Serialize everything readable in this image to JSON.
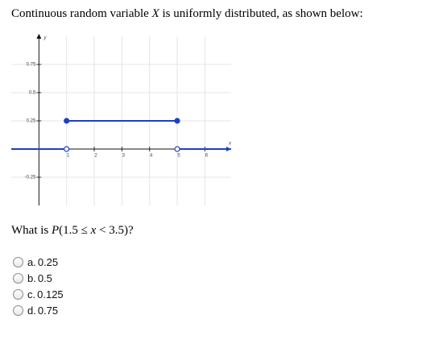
{
  "intro": [
    "Continuous random variable ",
    "X",
    " is uniformly distributed, as shown below:"
  ],
  "chart": {
    "type": "line",
    "xlabel": "x",
    "ylabel": "y",
    "xlim": [
      -1,
      6.95
    ],
    "ylim": [
      -0.5,
      1.0
    ],
    "xticks": [
      1,
      2,
      3,
      4,
      5,
      6
    ],
    "yticks": [
      -0.25,
      0.25,
      0.5,
      0.75
    ],
    "grid": true,
    "series": [
      {
        "color": "#1f3fc4",
        "x": [
          -1,
          1
        ],
        "values": [
          0,
          0
        ],
        "dots": [
          "none",
          "open"
        ]
      },
      {
        "color": "#1f3fc4",
        "x": [
          1,
          5
        ],
        "values": [
          0.25,
          0.25
        ],
        "dots": [
          "filled",
          "filled"
        ]
      },
      {
        "color": "#1f3fc4",
        "x": [
          5,
          6.95
        ],
        "values": [
          0,
          0
        ],
        "dots": [
          "open",
          "none"
        ]
      }
    ]
  },
  "question": [
    "What is ",
    "P",
    "(1.5 ≤ ",
    "x",
    " < 3.5)?"
  ],
  "options": [
    {
      "letter": "a.",
      "text": "0.25"
    },
    {
      "letter": "b.",
      "text": "0.5"
    },
    {
      "letter": "c.",
      "text": "0.125"
    },
    {
      "letter": "d.",
      "text": "0.75"
    }
  ]
}
